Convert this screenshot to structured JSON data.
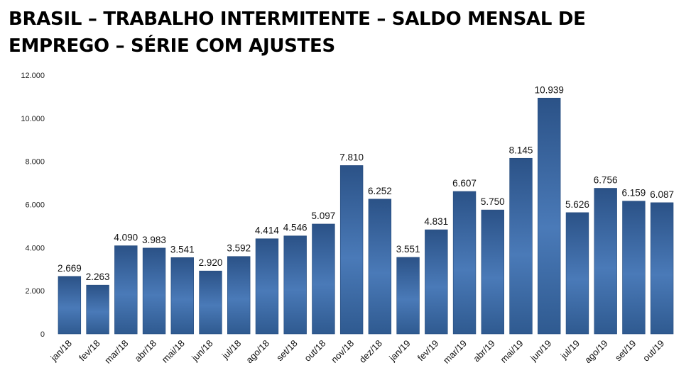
{
  "chart_data": {
    "type": "bar",
    "title": "BRASIL – TRABALHO INTERMITENTE – SALDO MENSAL DE EMPREGO – SÉRIE COM AJUSTES",
    "xlabel": "",
    "ylabel": "",
    "categories": [
      "jan/18",
      "fev/18",
      "mar/18",
      "abr/18",
      "mai/18",
      "jun/18",
      "jul/18",
      "ago/18",
      "set/18",
      "out/18",
      "nov/18",
      "dez/18",
      "jan/19",
      "fev/19",
      "mar/19",
      "abr/19",
      "mai/19",
      "jun/19",
      "jul/19",
      "ago/19",
      "set/19",
      "out/19"
    ],
    "values": [
      2669,
      2263,
      4090,
      3983,
      3541,
      2920,
      3592,
      4414,
      4546,
      5097,
      7810,
      6252,
      3551,
      4831,
      6607,
      5750,
      8145,
      10939,
      5626,
      6756,
      6159,
      6087
    ],
    "value_labels": [
      "2.669",
      "2.263",
      "4.090",
      "3.983",
      "3.541",
      "2.920",
      "3.592",
      "4.414",
      "4.546",
      "5.097",
      "7.810",
      "6.252",
      "3.551",
      "4.831",
      "6.607",
      "5.750",
      "8.145",
      "10.939",
      "5.626",
      "6.756",
      "6.159",
      "6.087"
    ],
    "ylim": [
      0,
      12000
    ],
    "yticks": [
      0,
      2000,
      4000,
      6000,
      8000,
      10000,
      12000
    ],
    "ytick_labels": [
      "0",
      "2.000",
      "4.000",
      "6.000",
      "8.000",
      "10.000",
      "12.000"
    ],
    "grid": false,
    "legend": "none",
    "colors": {
      "bar_dark": "#2b5287",
      "bar_light": "#4a7ab8"
    }
  }
}
